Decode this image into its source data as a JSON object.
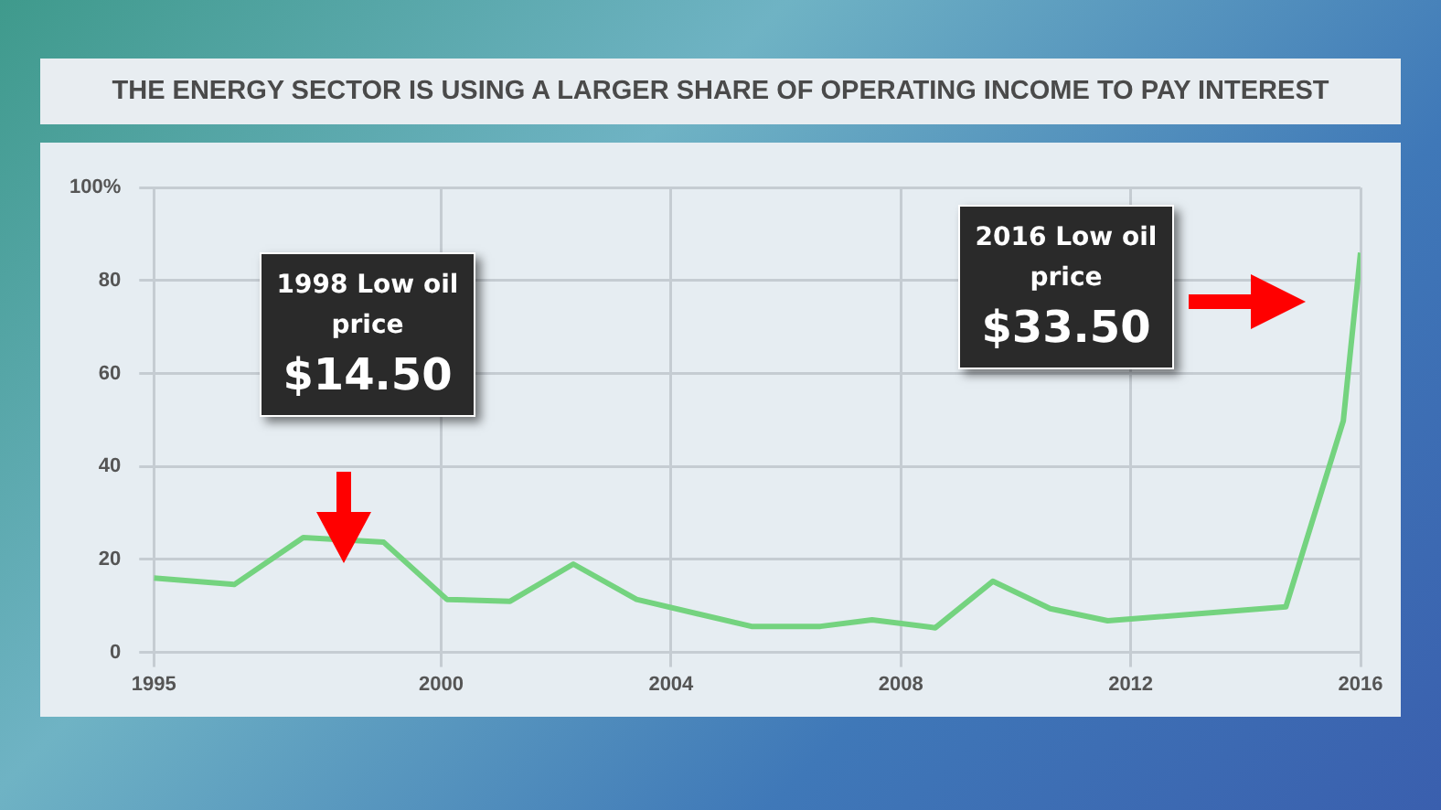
{
  "chart_data": {
    "type": "line",
    "title": "THE ENERGY SECTOR IS USING A LARGER SHARE OF OPERATING INCOME TO PAY INTEREST",
    "x": [
      1995,
      1996.4,
      1997.6,
      1999.0,
      2000.1,
      2001.2,
      2002.3,
      2003.4,
      2005.4,
      2006.6,
      2007.5,
      2008.6,
      2009.6,
      2010.6,
      2011.6,
      2014.7,
      2015.7,
      2016
    ],
    "series": [
      {
        "color": "#74d37f",
        "values": [
          16,
          14.6,
          24.7,
          23.7,
          11.4,
          11,
          19,
          11.4,
          5.6,
          5.6,
          7,
          5.3,
          15.3,
          9.4,
          6.8,
          9.8,
          49.8,
          86
        ]
      }
    ],
    "xlim": [
      1995,
      2016
    ],
    "xticks": [
      1995,
      2000,
      2004,
      2008,
      2012,
      2016
    ],
    "ylim": [
      0,
      100
    ],
    "yticks": [
      0,
      20,
      40,
      60,
      80,
      {
        "value": 100,
        "label": "100%"
      }
    ],
    "grid": true,
    "legend": false,
    "marker": "none",
    "line_style": "solid",
    "annotations": [
      "1998 Low oil price\n$14.50",
      "2016 Low oil price\n$33.50"
    ]
  }
}
